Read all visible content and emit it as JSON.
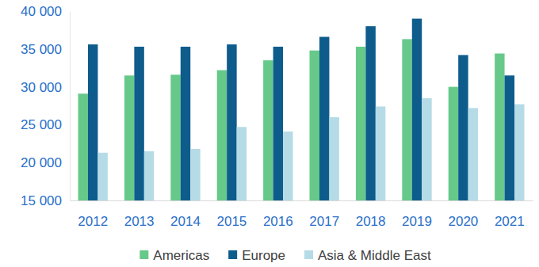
{
  "chart_data": {
    "type": "bar",
    "categories": [
      "2012",
      "2013",
      "2014",
      "2015",
      "2016",
      "2017",
      "2018",
      "2019",
      "2020",
      "2021"
    ],
    "series": [
      {
        "name": "Americas",
        "color": "#66c98a",
        "values": [
          29100,
          31500,
          31600,
          32200,
          33500,
          34800,
          35300,
          36300,
          30000,
          34400
        ]
      },
      {
        "name": "Europe",
        "color": "#0d5c8c",
        "values": [
          35600,
          35300,
          35300,
          35600,
          35300,
          36600,
          38000,
          39000,
          34200,
          31500
        ]
      },
      {
        "name": "Asia & Middle East",
        "color": "#b5dbe7",
        "values": [
          21300,
          21500,
          21800,
          24700,
          24100,
          26000,
          27400,
          28500,
          27200,
          27700
        ]
      }
    ],
    "ylim": [
      15000,
      40000
    ],
    "yticks": [
      {
        "value": 15000,
        "label": "15 000"
      },
      {
        "value": 20000,
        "label": "20 000"
      },
      {
        "value": 25000,
        "label": "25 000"
      },
      {
        "value": 30000,
        "label": "30 000"
      },
      {
        "value": 35000,
        "label": "35 000"
      },
      {
        "value": 40000,
        "label": "40 000"
      }
    ],
    "grid": false,
    "legend": "bottom"
  }
}
